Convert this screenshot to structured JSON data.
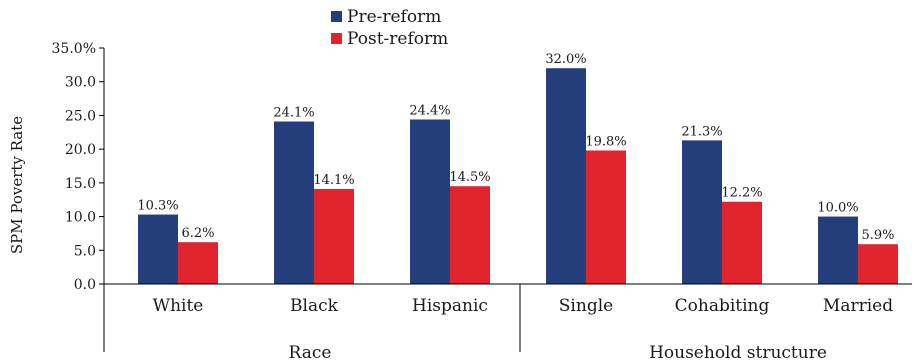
{
  "chart_data": {
    "type": "bar",
    "ylabel": "SPM Poverty Rate",
    "ylim": [
      0,
      35
    ],
    "yticks": [
      "0.0",
      "5.0",
      "10.0",
      "15.0",
      "20.0",
      "25.0",
      "30.0",
      "35.0%"
    ],
    "categories": [
      "White",
      "Black",
      "Hispanic",
      "Single",
      "Cohabiting",
      "Married"
    ],
    "groups": [
      {
        "label": "Race",
        "categories": [
          "White",
          "Black",
          "Hispanic"
        ]
      },
      {
        "label": "Household structure",
        "categories": [
          "Single",
          "Cohabiting",
          "Married"
        ]
      }
    ],
    "series": [
      {
        "name": "Pre-reform",
        "color": "#233e7a",
        "values": [
          10.3,
          24.1,
          24.4,
          32.0,
          21.3,
          10.0
        ],
        "labels": [
          "10.3%",
          "24.1%",
          "24.4%",
          "32.0%",
          "21.3%",
          "10.0%"
        ]
      },
      {
        "name": "Post-reform",
        "color": "#e0232d",
        "values": [
          6.2,
          14.1,
          14.5,
          19.8,
          12.2,
          5.9
        ],
        "labels": [
          "6.2%",
          "14.1%",
          "14.5%",
          "19.8%",
          "12.2%",
          "5.9%"
        ]
      }
    ],
    "legend": "top-center",
    "grid": false
  }
}
